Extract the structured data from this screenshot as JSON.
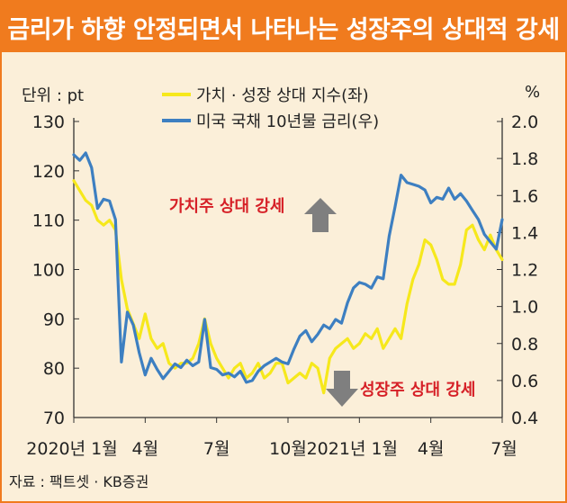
{
  "header": {
    "title": "금리가 하향 안정되면서 나타나는 성장주의 상대적 강세"
  },
  "source": "자료 : 팩트셋 · KB증권",
  "colors": {
    "banner": "#f07b1e",
    "background": "#fbefd9",
    "series_yellow": "#f6e81c",
    "series_blue": "#3d7fc1",
    "annotation_red": "#d62027",
    "arrow_gray": "#7f7f7f"
  },
  "chart_data": {
    "type": "line",
    "unit_left": "단위 : pt",
    "unit_right": "%",
    "xlabels": [
      "2020년 1월",
      "4월",
      "7월",
      "10월",
      "2021년 1월",
      "4월",
      "7월"
    ],
    "y_left": {
      "ylim": [
        70,
        130
      ],
      "ticks": [
        70,
        80,
        90,
        100,
        110,
        120,
        130
      ]
    },
    "y_right": {
      "ylim": [
        0.4,
        2.0
      ],
      "ticks": [
        "0.4",
        "0.6",
        "0.8",
        "1.0",
        "1.2",
        "1.4",
        "1.6",
        "1.8",
        "2.0"
      ]
    },
    "series": [
      {
        "name": "가치 · 성장 상대 지수(좌)",
        "axis": "left",
        "color": "#f6e81c",
        "x": [
          0.0,
          0.25,
          0.5,
          0.75,
          1.0,
          1.25,
          1.5,
          1.75,
          2.0,
          2.25,
          2.5,
          2.75,
          3.0,
          3.25,
          3.5,
          3.75,
          4.0,
          4.25,
          4.5,
          4.75,
          5.0,
          5.25,
          5.5,
          5.75,
          6.0,
          6.25,
          6.5,
          6.75,
          7.0,
          7.25,
          7.5,
          7.75,
          8.0,
          8.25,
          8.5,
          8.75,
          9.0,
          9.25,
          9.5,
          9.75,
          10.0,
          10.25,
          10.5,
          10.75,
          11.0,
          11.25,
          11.5,
          11.75,
          12.0,
          12.25,
          12.5,
          12.75,
          13.0,
          13.25,
          13.5,
          13.75,
          14.0,
          14.25,
          14.5,
          14.75,
          15.0,
          15.25,
          15.5,
          15.75,
          16.0,
          16.25,
          16.5,
          16.75,
          17.0,
          17.25,
          17.5,
          17.75,
          18.0
        ],
        "values": [
          118,
          116,
          114,
          113,
          110,
          109,
          110,
          108,
          98,
          92,
          89,
          86,
          91,
          86,
          84,
          85,
          81,
          80,
          81,
          81,
          82,
          85,
          90,
          85,
          82,
          80,
          78,
          80,
          81,
          78,
          79,
          81,
          78,
          79,
          81,
          81,
          77,
          78,
          79,
          78,
          81,
          80,
          75,
          82,
          84,
          85,
          86,
          84,
          85,
          87,
          86,
          88,
          84,
          86,
          88,
          86,
          93,
          98,
          101,
          106,
          105,
          102,
          98,
          97,
          97,
          101,
          108,
          109,
          106,
          104,
          107,
          104,
          102
        ]
      },
      {
        "name": "미국 국채 10년물 금리(우)",
        "axis": "right",
        "color": "#3d7fc1",
        "x": [
          0.0,
          0.25,
          0.5,
          0.75,
          1.0,
          1.25,
          1.5,
          1.75,
          2.0,
          2.25,
          2.5,
          2.75,
          3.0,
          3.25,
          3.5,
          3.75,
          4.0,
          4.25,
          4.5,
          4.75,
          5.0,
          5.25,
          5.5,
          5.75,
          6.0,
          6.25,
          6.5,
          6.75,
          7.0,
          7.25,
          7.5,
          7.75,
          8.0,
          8.25,
          8.5,
          8.75,
          9.0,
          9.25,
          9.5,
          9.75,
          10.0,
          10.25,
          10.5,
          10.75,
          11.0,
          11.25,
          11.5,
          11.75,
          12.0,
          12.25,
          12.5,
          12.75,
          13.0,
          13.25,
          13.5,
          13.75,
          14.0,
          14.25,
          14.5,
          14.75,
          15.0,
          15.25,
          15.5,
          15.75,
          16.0,
          16.25,
          16.5,
          16.75,
          17.0,
          17.25,
          17.5,
          17.75,
          18.0
        ],
        "values": [
          1.82,
          1.79,
          1.83,
          1.75,
          1.53,
          1.58,
          1.57,
          1.47,
          0.7,
          0.97,
          0.9,
          0.75,
          0.63,
          0.72,
          0.66,
          0.61,
          0.65,
          0.69,
          0.67,
          0.71,
          0.68,
          0.7,
          0.93,
          0.67,
          0.66,
          0.63,
          0.64,
          0.62,
          0.65,
          0.59,
          0.6,
          0.65,
          0.68,
          0.7,
          0.72,
          0.7,
          0.69,
          0.77,
          0.84,
          0.87,
          0.81,
          0.85,
          0.9,
          0.88,
          0.93,
          0.91,
          1.02,
          1.1,
          1.13,
          1.12,
          1.1,
          1.16,
          1.15,
          1.38,
          1.54,
          1.71,
          1.67,
          1.66,
          1.65,
          1.63,
          1.56,
          1.59,
          1.58,
          1.64,
          1.58,
          1.61,
          1.57,
          1.52,
          1.47,
          1.39,
          1.35,
          1.31,
          1.47
        ]
      }
    ],
    "annotations": {
      "value_strong": "가치주 상대 강세",
      "growth_strong": "성장주 상대 강세"
    }
  }
}
